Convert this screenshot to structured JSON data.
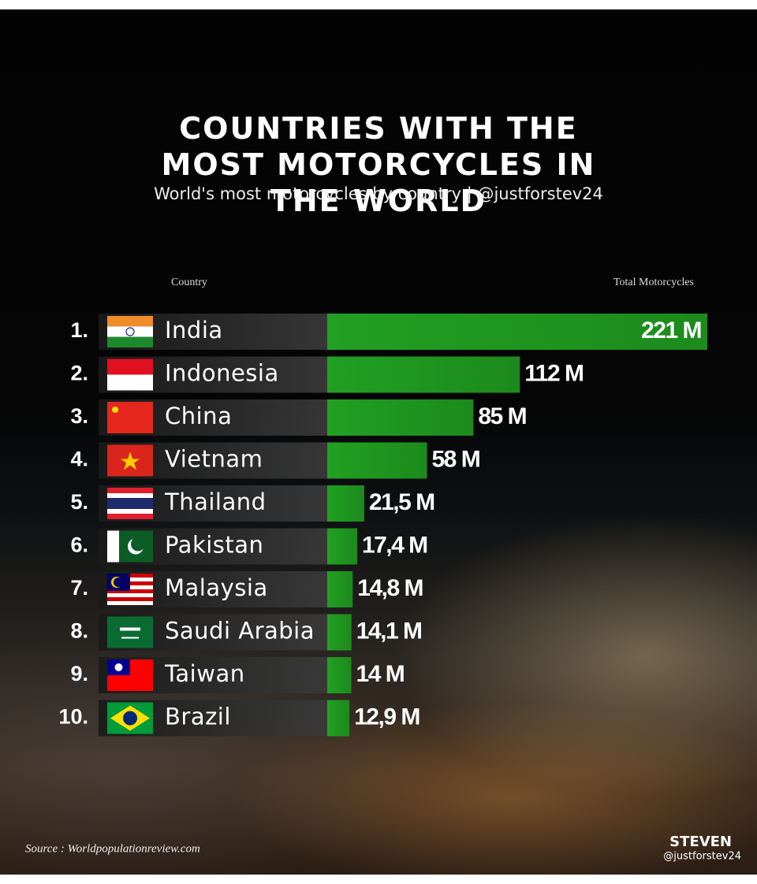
{
  "chart_data": {
    "type": "bar",
    "title": "COUNTRIES WITH THE MOST MOTORCYCLES IN THE WORLD",
    "subtitle": "World's most motorcycles by country | @justforstev24",
    "category_header": "Country",
    "value_header": "Total Motorcycles",
    "ranks": [
      "1.",
      "2.",
      "3.",
      "4.",
      "5.",
      "6.",
      "7.",
      "8.",
      "9.",
      "10."
    ],
    "categories": [
      "India",
      "Indonesia",
      "China",
      "Vietnam",
      "Thailand",
      "Pakistan",
      "Malaysia",
      "Saudi Arabia",
      "Taiwan",
      "Brazil"
    ],
    "values": [
      221,
      112,
      85,
      58,
      21.5,
      17.4,
      14.8,
      14.1,
      14,
      12.9
    ],
    "value_labels": [
      "221 M",
      "112 M",
      "85 M",
      "58 M",
      "21,5 M",
      "17,4 M",
      "14,8 M",
      "14,1 M",
      "14 M",
      "12,9 M"
    ],
    "color": "#22a022",
    "source": "Source : Worldpopulationreview.com",
    "signature": "STEVEN",
    "handle": "@justforstev24"
  }
}
